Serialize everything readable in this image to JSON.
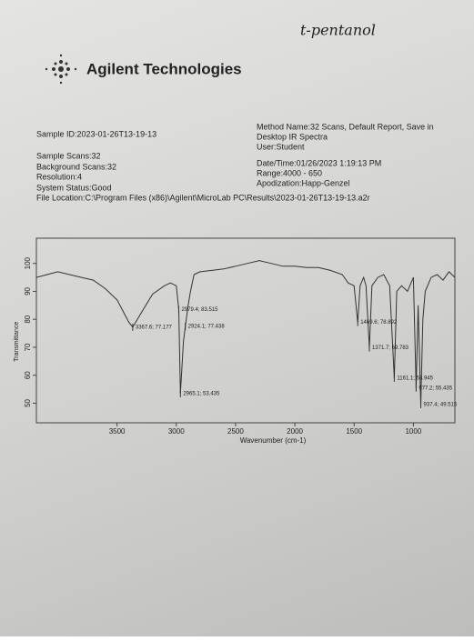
{
  "note_handwritten": "t-pentanol",
  "header": {
    "company": "Agilent Technologies"
  },
  "info_left": [
    "Sample ID:2023-01-26T13-19-13",
    "Sample Scans:32",
    "Background Scans:32",
    "Resolution:4",
    "System Status:Good"
  ],
  "info_right": [
    "Method Name:32 Scans, Default Report, Save in",
    "Desktop IR Spectra",
    "User:Student",
    "Date/Time:01/26/2023 1:19:13 PM",
    "Range:4000 - 650",
    "Apodization:Happ-Genzel"
  ],
  "file_location": "File Location:C:\\Program Files (x86)\\Agilent\\MicroLab PC\\Results\\2023-01-26T13-19-13.a2r",
  "chart_data": {
    "type": "line",
    "x_label": "Wavenumber (cm-1)",
    "y_label": "Transmittance",
    "color": "#333333",
    "x": [
      4180,
      4000,
      3900,
      3800,
      3700,
      3600,
      3500,
      3450,
      3400,
      3367.6,
      3300,
      3200,
      3100,
      3050,
      3000,
      2979.4,
      2965.1,
      2940,
      2924.1,
      2900,
      2880,
      2850,
      2800,
      2700,
      2600,
      2500,
      2400,
      2300,
      2200,
      2100,
      2000,
      1900,
      1800,
      1700,
      1600,
      1550,
      1500,
      1469.6,
      1450,
      1420,
      1400,
      1371.7,
      1350,
      1300,
      1250,
      1200,
      1161.1,
      1140,
      1100,
      1050,
      1000,
      977.2,
      960,
      937.4,
      920,
      900,
      850,
      800,
      750,
      700,
      650
    ],
    "values": [
      95,
      97,
      96,
      95,
      94,
      91,
      87,
      83,
      79,
      77.177,
      82,
      89,
      92,
      93,
      92,
      83.515,
      53.435,
      72,
      77.438,
      85,
      90,
      96,
      97,
      97.5,
      98,
      99,
      100,
      101,
      100,
      99,
      99,
      98.5,
      98.5,
      97.5,
      96,
      93,
      92,
      78.892,
      92,
      95,
      92,
      69.783,
      92,
      95,
      96,
      92,
      58.945,
      90,
      92,
      90,
      95,
      55.435,
      85,
      49.515,
      80,
      90,
      95,
      96,
      94,
      97,
      95
    ],
    "xlim": [
      4180,
      650
    ],
    "ylim": [
      43,
      109
    ],
    "xticks": [
      3500,
      3000,
      2500,
      2000,
      1500,
      1000
    ],
    "yticks": [
      50,
      60,
      70,
      80,
      90,
      100
    ],
    "annotations": [
      {
        "label": "3367.6; 77.177",
        "x": 3367.6,
        "y": 77.177
      },
      {
        "label": "2979.4; 83.515",
        "x": 2979.4,
        "y": 83.515
      },
      {
        "label": "2924.1; 77.438",
        "x": 2924.1,
        "y": 77.438
      },
      {
        "label": "2965.1; 53.435",
        "x": 2965.1,
        "y": 53.435
      },
      {
        "label": "1469.6; 78.892",
        "x": 1469.6,
        "y": 78.892
      },
      {
        "label": "1371.7; 69.783",
        "x": 1371.7,
        "y": 69.783
      },
      {
        "label": "1161.1; 58.945",
        "x": 1161.1,
        "y": 58.945
      },
      {
        "label": "977.2; 55.435",
        "x": 977.2,
        "y": 55.435
      },
      {
        "label": "937.4; 49.515",
        "x": 937.4,
        "y": 49.515
      }
    ]
  }
}
